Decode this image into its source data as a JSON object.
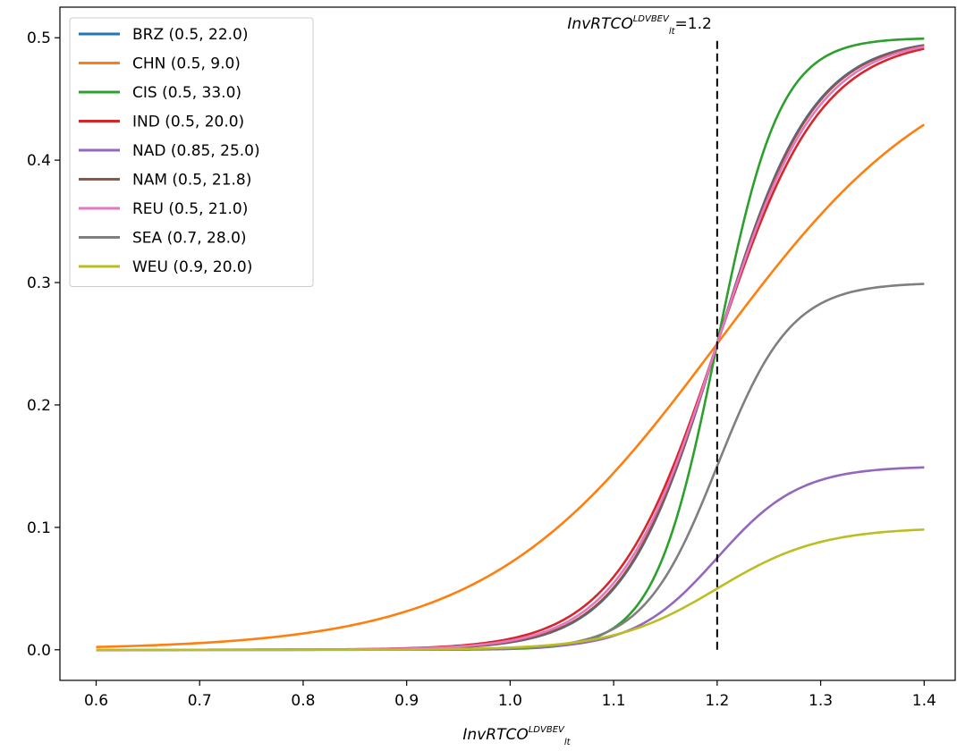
{
  "chart_data": {
    "type": "line",
    "xlabel": "InvRTCO",
    "xlabel_sub": "lt",
    "xlabel_sup": "LDVBEV",
    "xlim": [
      0.565,
      1.43
    ],
    "ylim": [
      -0.025,
      0.525
    ],
    "x_ticks": [
      0.6,
      0.7,
      0.8,
      0.9,
      1.0,
      1.1,
      1.2,
      1.3,
      1.4
    ],
    "x_tick_labels": [
      "0.6",
      "0.7",
      "0.8",
      "0.9",
      "1.0",
      "1.1",
      "1.2",
      "1.3",
      "1.4"
    ],
    "y_ticks": [
      0.0,
      0.1,
      0.2,
      0.3,
      0.4,
      0.5
    ],
    "y_tick_labels": [
      "0.0",
      "0.1",
      "0.2",
      "0.3",
      "0.4",
      "0.5"
    ],
    "x_range": [
      0.6,
      1.4
    ],
    "curve_form": "logistic: y = L / (1 + exp(-k (x - 1.2)))",
    "series": [
      {
        "name": "BRZ (0.5, 22.0)",
        "L": 0.5,
        "k": 22.0,
        "color": "#1f77b4"
      },
      {
        "name": "CHN (0.5, 9.0)",
        "L": 0.5,
        "k": 9.0,
        "color": "#ff7f0e"
      },
      {
        "name": "CIS (0.5, 33.0)",
        "L": 0.5,
        "k": 33.0,
        "color": "#2ca02c"
      },
      {
        "name": "IND (0.5, 20.0)",
        "L": 0.5,
        "k": 20.0,
        "color": "#d62728"
      },
      {
        "name": "NAD (0.85, 25.0)",
        "L": 0.15,
        "k": 25.0,
        "color": "#9467bd"
      },
      {
        "name": "NAM (0.5, 21.8)",
        "L": 0.5,
        "k": 21.8,
        "color": "#8c564b"
      },
      {
        "name": "REU (0.5, 21.0)",
        "L": 0.5,
        "k": 21.0,
        "color": "#e377c2"
      },
      {
        "name": "SEA (0.7, 28.0)",
        "L": 0.3,
        "k": 28.0,
        "color": "#7f7f7f"
      },
      {
        "name": "WEU (0.9, 20.0)",
        "L": 0.1,
        "k": 20.0,
        "color": "#bcbd22"
      }
    ],
    "annotation": {
      "x": 1.2,
      "label_main": "InvRTCO",
      "label_sub": "lt",
      "label_sup": "LDVBEV",
      "label_value": "=1.2"
    },
    "legend_position": "upper-left",
    "grid": false
  }
}
